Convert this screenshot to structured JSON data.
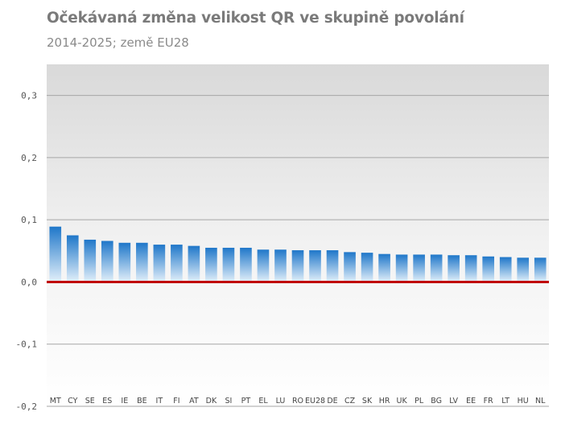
{
  "chart_data": {
    "type": "bar",
    "title": "Očekávaná změna velikost QR ve skupině povolání",
    "subtitle": "2014-2025; země EU28",
    "categories": [
      "MT",
      "CY",
      "SE",
      "ES",
      "IE",
      "BE",
      "IT",
      "FI",
      "AT",
      "DK",
      "SI",
      "PT",
      "EL",
      "LU",
      "RO",
      "EU28",
      "DE",
      "CZ",
      "SK",
      "HR",
      "UK",
      "PL",
      "BG",
      "LV",
      "EE",
      "FR",
      "LT",
      "HU",
      "NL"
    ],
    "values": [
      0.089,
      0.075,
      0.068,
      0.066,
      0.063,
      0.063,
      0.06,
      0.06,
      0.058,
      0.055,
      0.055,
      0.055,
      0.052,
      0.052,
      0.051,
      0.051,
      0.051,
      0.048,
      0.047,
      0.045,
      0.044,
      0.044,
      0.044,
      0.043,
      0.043,
      0.041,
      0.04,
      0.039,
      0.039
    ],
    "ylim": [
      -0.2,
      0.35
    ],
    "yticks": [
      0.3,
      0.2,
      0.1,
      0.0,
      -0.1,
      -0.2
    ],
    "ytick_labels": [
      "0,3",
      "0,2",
      "0,1",
      "0,0",
      "-0,1",
      "-0,2"
    ],
    "xlabel": "",
    "ylabel": "",
    "grid": true,
    "colors": {
      "bar_top": "#1f77c9",
      "bar_bottom": "#e3f0fa",
      "zero_line": "#c00000",
      "grid": "#a6a6a6",
      "plot_bg_top": "#d9d9d9",
      "plot_bg_bottom": "#ffffff"
    }
  }
}
